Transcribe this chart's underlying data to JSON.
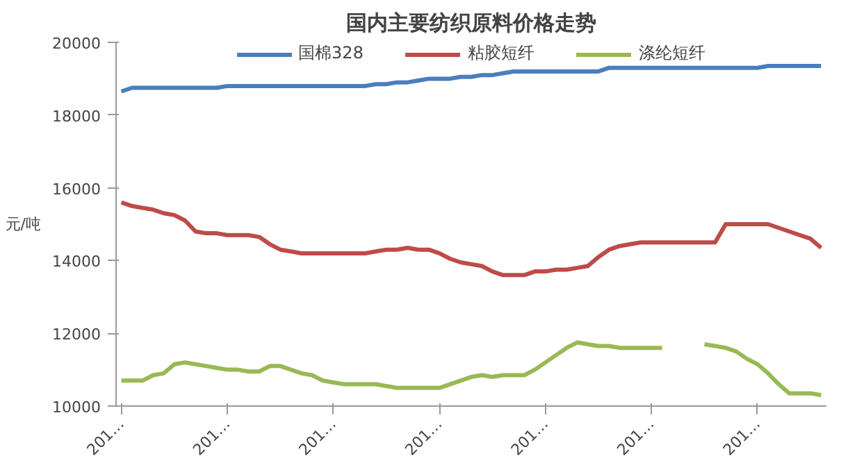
{
  "chart_data": {
    "type": "line",
    "title": "国内主要纺织原料价格走势",
    "ylabel": "元/吨",
    "categories": [
      "201…",
      null,
      null,
      null,
      null,
      null,
      null,
      null,
      null,
      null,
      "201…",
      null,
      null,
      null,
      null,
      null,
      null,
      null,
      null,
      null,
      "201…",
      null,
      null,
      null,
      null,
      null,
      null,
      null,
      null,
      null,
      "201…",
      null,
      null,
      null,
      null,
      null,
      null,
      null,
      null,
      null,
      "201…",
      null,
      null,
      null,
      null,
      null,
      null,
      null,
      null,
      null,
      "201…",
      null,
      null,
      null,
      null,
      null,
      null,
      null,
      null,
      null,
      "201…",
      null,
      null,
      null,
      null,
      null,
      null
    ],
    "ylim": [
      10000,
      20000
    ],
    "yticks": [
      10000,
      12000,
      14000,
      16000,
      18000,
      20000
    ],
    "grid": false,
    "legend": "top",
    "line_style": "solid",
    "marker": "none",
    "series": [
      {
        "name": "国棉328",
        "color": "#4a7ebb",
        "values": [
          18650,
          18750,
          18750,
          18750,
          18750,
          18750,
          18750,
          18750,
          18750,
          18750,
          18800,
          18800,
          18800,
          18800,
          18800,
          18800,
          18800,
          18800,
          18800,
          18800,
          18800,
          18800,
          18800,
          18800,
          18850,
          18850,
          18900,
          18900,
          18950,
          19000,
          19000,
          19000,
          19050,
          19050,
          19100,
          19100,
          19150,
          19200,
          19200,
          19200,
          19200,
          19200,
          19200,
          19200,
          19200,
          19200,
          19300,
          19300,
          19300,
          19300,
          19300,
          19300,
          19300,
          19300,
          19300,
          19300,
          19300,
          19300,
          19300,
          19300,
          19300,
          19350,
          19350,
          19350,
          19350,
          19350,
          19350
        ]
      },
      {
        "name": "粘胶短纤",
        "color": "#be4b48",
        "values": [
          15600,
          15500,
          15450,
          15400,
          15300,
          15250,
          15100,
          14800,
          14750,
          14750,
          14700,
          14700,
          14700,
          14650,
          14450,
          14300,
          14250,
          14200,
          14200,
          14200,
          14200,
          14200,
          14200,
          14200,
          14250,
          14300,
          14300,
          14350,
          14300,
          14300,
          14200,
          14050,
          13950,
          13900,
          13850,
          13700,
          13600,
          13600,
          13600,
          13700,
          13700,
          13750,
          13750,
          13800,
          13850,
          14100,
          14300,
          14400,
          14450,
          14500,
          14500,
          14500,
          14500,
          14500,
          14500,
          14500,
          14500,
          15000,
          15000,
          15000,
          15000,
          15000,
          14900,
          14800,
          14700,
          14600,
          14350
        ]
      },
      {
        "name": "涤纶短纤",
        "color": "#98b954",
        "values": [
          10700,
          10700,
          10700,
          10850,
          10900,
          11150,
          11200,
          11150,
          11100,
          11050,
          11000,
          11000,
          10950,
          10950,
          11100,
          11100,
          11000,
          10900,
          10850,
          10700,
          10650,
          10600,
          10600,
          10600,
          10600,
          10550,
          10500,
          10500,
          10500,
          10500,
          10500,
          10600,
          10700,
          10800,
          10850,
          10800,
          10850,
          10850,
          10850,
          11000,
          11200,
          11400,
          11600,
          11750,
          11700,
          11650,
          11650,
          11600,
          11600,
          11600,
          11600,
          11600,
          null,
          null,
          null,
          11700,
          11650,
          11600,
          11500,
          11300,
          11150,
          10900,
          10600,
          10350,
          10350,
          10350,
          10300
        ]
      }
    ]
  }
}
